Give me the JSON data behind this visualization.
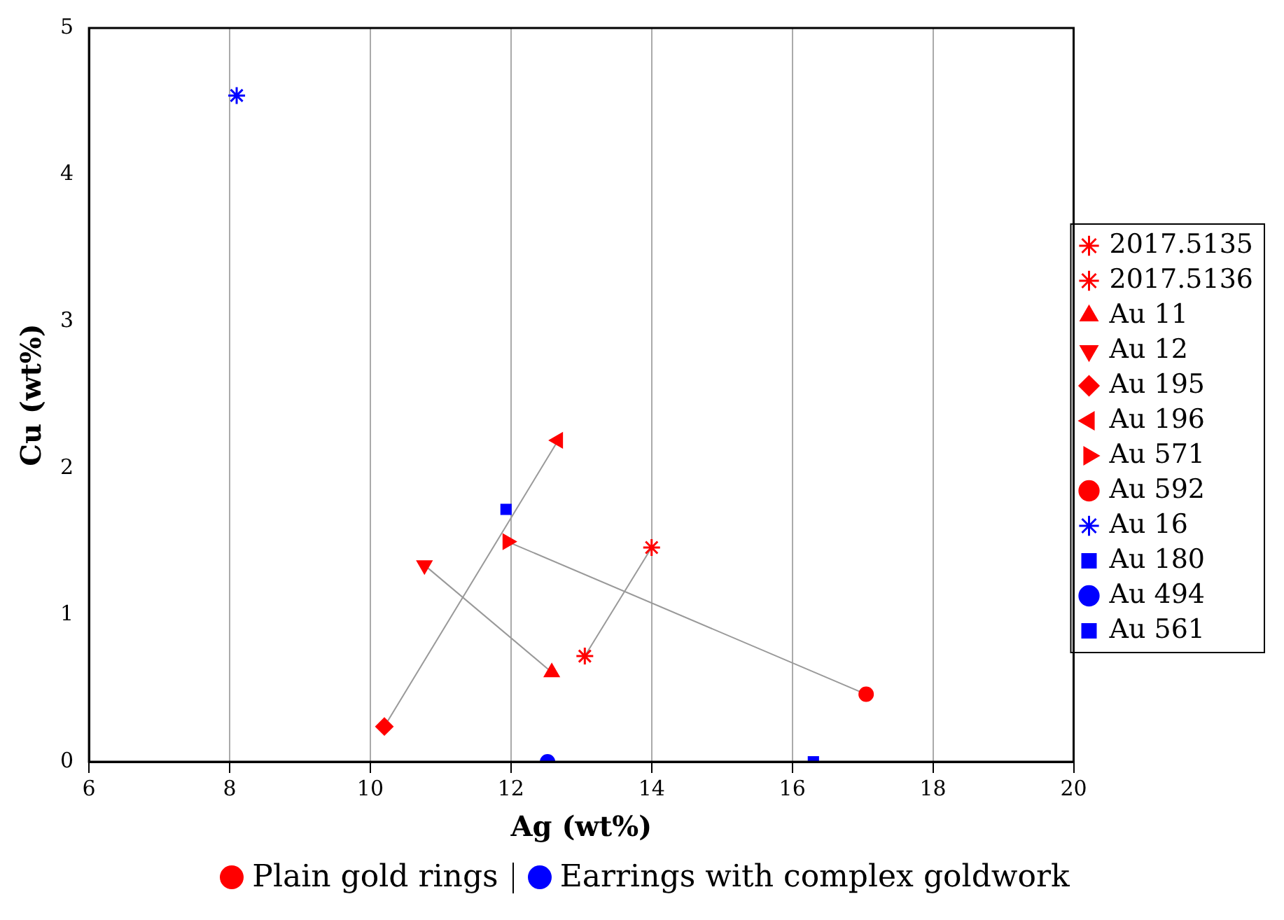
{
  "chart_data": {
    "type": "scatter",
    "xlabel": "Ag (wt%)",
    "ylabel": "Cu (wt%)",
    "xlim": [
      6,
      20
    ],
    "xticks": [
      6,
      8,
      10,
      12,
      14,
      16,
      18,
      20
    ],
    "ylim": [
      0,
      5
    ],
    "yticks": [
      0,
      1,
      2,
      3,
      4,
      5
    ],
    "grid": "x",
    "legend": "right",
    "annotations": [
      "Plain gold rings",
      "Earrings with complex goldwork"
    ],
    "series": [
      {
        "name": "2017.5135",
        "color": "#ff0000",
        "marker": "cross",
        "x": [
          14.0
        ],
        "values": [
          1.46
        ]
      },
      {
        "name": "2017.5136",
        "color": "#ff0000",
        "marker": "cross",
        "x": [
          13.05
        ],
        "values": [
          0.72
        ]
      },
      {
        "name": "Au 11",
        "color": "#ff0000",
        "marker": "triangle",
        "x": [
          12.58
        ],
        "values": [
          0.61
        ]
      },
      {
        "name": "Au 12",
        "color": "#ff0000",
        "marker": "triangle-down",
        "x": [
          10.77
        ],
        "values": [
          1.34
        ]
      },
      {
        "name": "Au 195",
        "color": "#ff0000",
        "marker": "diamond",
        "x": [
          10.2
        ],
        "values": [
          0.24
        ]
      },
      {
        "name": "Au 196",
        "color": "#ff0000",
        "marker": "triangle-left",
        "x": [
          12.67
        ],
        "values": [
          2.19
        ]
      },
      {
        "name": "Au 571",
        "color": "#ff0000",
        "marker": "triangle-right",
        "x": [
          11.95
        ],
        "values": [
          1.5
        ]
      },
      {
        "name": "Au 592",
        "color": "#ff0000",
        "marker": "circle",
        "x": [
          17.05
        ],
        "values": [
          0.46
        ]
      },
      {
        "name": "Au 16",
        "color": "#0000ff",
        "marker": "cross",
        "x": [
          8.1
        ],
        "values": [
          4.54
        ]
      },
      {
        "name": "Au 180",
        "color": "#0000ff",
        "marker": "square",
        "x": [
          11.93
        ],
        "values": [
          1.72
        ]
      },
      {
        "name": "Au 494",
        "color": "#0000ff",
        "marker": "circle",
        "x": [
          12.52
        ],
        "values": [
          0
        ]
      },
      {
        "name": "Au 561",
        "color": "#0000ff",
        "marker": "square",
        "x": [
          16.3
        ],
        "values": [
          0
        ]
      },
      {
        "type": "line",
        "color": "#999999",
        "marker": "none",
        "x": [
          14.0,
          13.05
        ],
        "values": [
          1.46,
          0.72
        ]
      },
      {
        "type": "line",
        "color": "#999999",
        "marker": "none",
        "x": [
          12.58,
          10.77
        ],
        "values": [
          0.61,
          1.34
        ]
      },
      {
        "type": "line",
        "color": "#999999",
        "marker": "none",
        "x": [
          10.2,
          12.67
        ],
        "values": [
          0.24,
          2.19
        ]
      },
      {
        "type": "line",
        "color": "#999999",
        "marker": "none",
        "x": [
          11.95,
          17.05
        ],
        "values": [
          1.5,
          0.46
        ]
      }
    ]
  }
}
